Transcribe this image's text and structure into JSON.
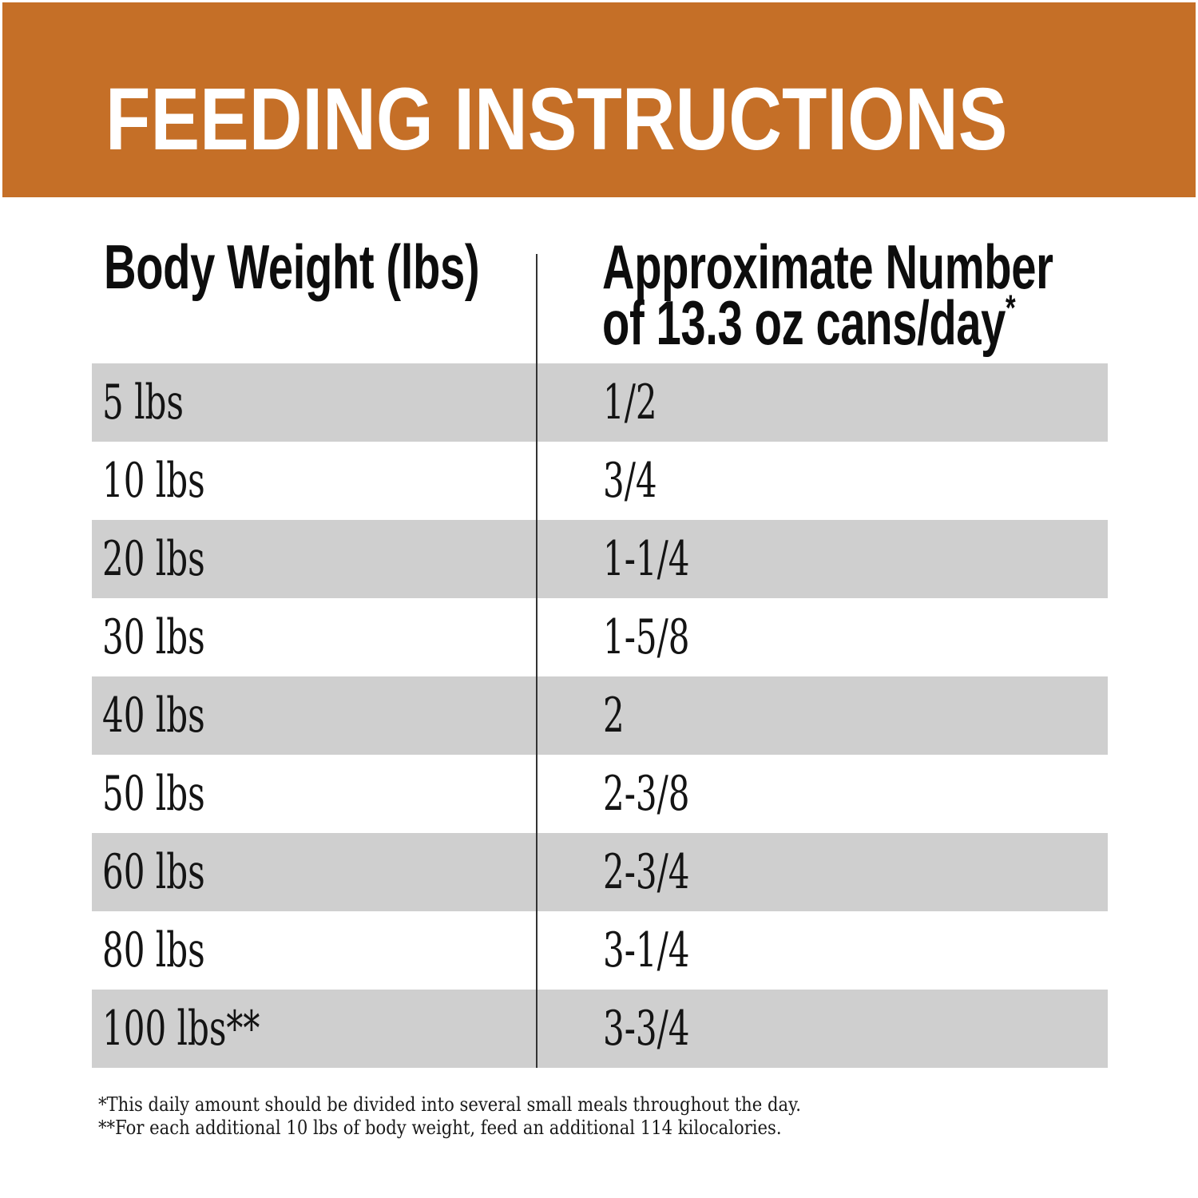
{
  "banner": {
    "title": "FEEDING INSTRUCTIONS",
    "bg_color": "#c56f27",
    "text_color": "#ffffff"
  },
  "table": {
    "header": {
      "col1": "Body Weight (lbs)",
      "col2_line1": "Approximate Number",
      "col2_line2": "of 13.3 oz cans/day",
      "col2_marker": "*"
    },
    "row_alt_color": "#cfcfcf",
    "divider_color": "#333333",
    "rows": [
      {
        "weight": "5 lbs",
        "cans": "1/2"
      },
      {
        "weight": "10 lbs",
        "cans": "3/4"
      },
      {
        "weight": "20 lbs",
        "cans": "1-1/4"
      },
      {
        "weight": "30 lbs",
        "cans": "1-5/8"
      },
      {
        "weight": "40 lbs",
        "cans": "2"
      },
      {
        "weight": "50 lbs",
        "cans": "2-3/8"
      },
      {
        "weight": "60 lbs",
        "cans": "2-3/4"
      },
      {
        "weight": "80 lbs",
        "cans": "3-1/4"
      },
      {
        "weight": "100 lbs**",
        "cans": "3-3/4"
      }
    ]
  },
  "footnotes": {
    "line1": "*This daily amount should be divided into several small meals throughout the day.",
    "line2": "**For each additional 10 lbs of body weight, feed an additional 114 kilocalories."
  }
}
